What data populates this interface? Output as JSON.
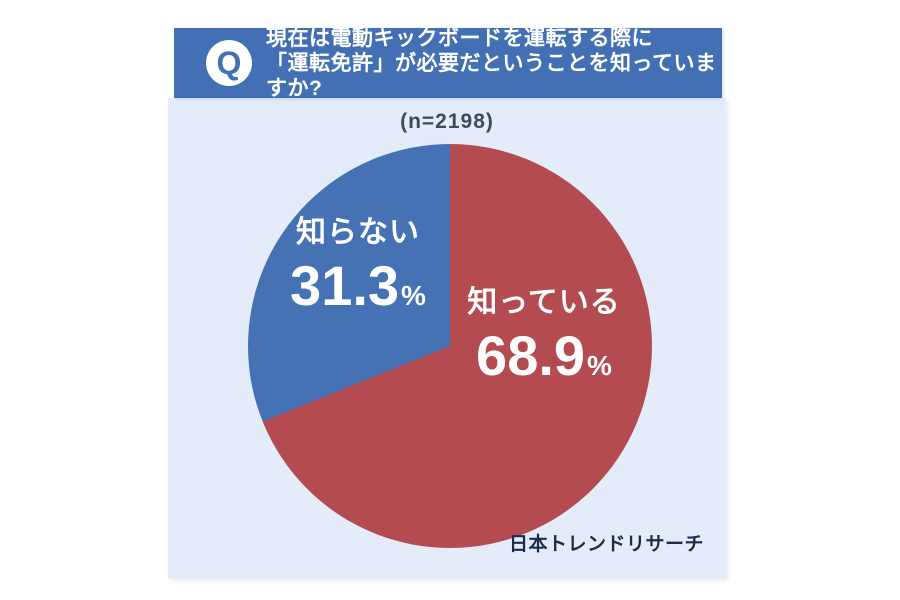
{
  "page": {
    "background_color": "#ffffff",
    "panel_color": "#e4ecf9"
  },
  "header": {
    "q_label": "Q",
    "line1": "現在は電動キックボードを運転する際に",
    "line2": "「運転免許」が必要だということを知っていますか?",
    "background_color": "#4370b4",
    "text_color": "#ffffff"
  },
  "sample_size_label": "(n=2198)",
  "source_label": "日本トレンドリサーチ",
  "chart_data": {
    "type": "pie",
    "title": "現在は電動キックボードを運転する際に「運転免許」が必要だということを知っていますか?",
    "sample_size": 2198,
    "sample_size_label": "(n=2198)",
    "unit": "%",
    "start_angle_deg": 0,
    "direction": "clockwise",
    "slices": [
      {
        "label": "知っている",
        "value": 68.9,
        "value_text": "68.9",
        "color": "#b44b50"
      },
      {
        "label": "知らない",
        "value": 31.3,
        "value_text": "31.3",
        "color": "#4571b5"
      }
    ],
    "legend": "labels-inside-slices",
    "source": "日本トレンドリサーチ"
  }
}
